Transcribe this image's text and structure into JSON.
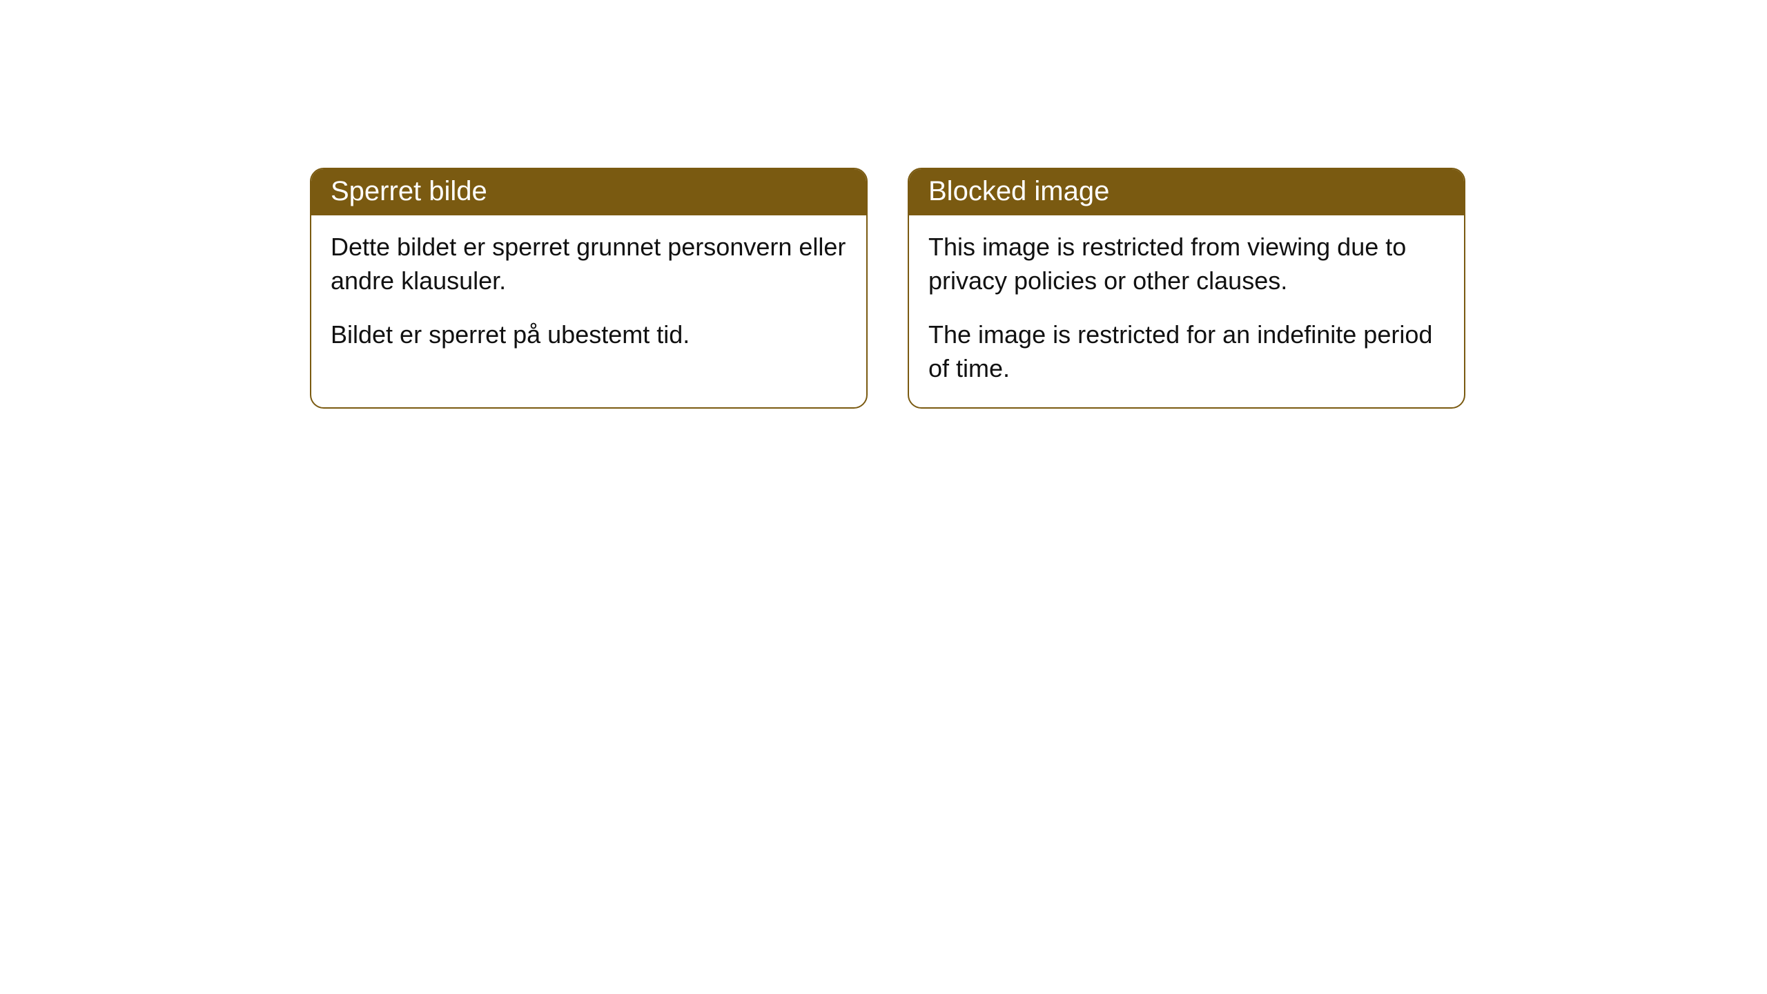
{
  "cards": [
    {
      "title": "Sperret bilde",
      "paragraph1": "Dette bildet er sperret grunnet personvern eller andre klausuler.",
      "paragraph2": "Bildet er sperret på ubestemt tid."
    },
    {
      "title": "Blocked image",
      "paragraph1": "This image is restricted from viewing due to privacy policies or other clauses.",
      "paragraph2": "The image is restricted for an indefinite period of time."
    }
  ],
  "style": {
    "header_background": "#7a5a11",
    "header_text_color": "#ffffff",
    "border_color": "#7a5a11",
    "body_text_color": "#111111",
    "page_background": "#ffffff",
    "border_radius": 20,
    "title_fontsize": 40,
    "body_fontsize": 36
  }
}
